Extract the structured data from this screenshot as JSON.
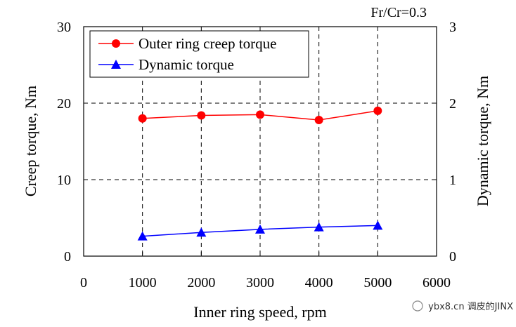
{
  "chart_data": {
    "type": "line",
    "annotation": "Fr/Cr=0.3",
    "xlabel": "Inner ring speed, rpm",
    "ylabel_left": "Creep torque, Nm",
    "ylabel_right": "Dynamic torque, Nm",
    "xlim": [
      0,
      6000
    ],
    "ylim_left": [
      0,
      30
    ],
    "ylim_right": [
      0,
      3
    ],
    "x_ticks": [
      0,
      1000,
      2000,
      3000,
      4000,
      5000,
      6000
    ],
    "x_tick_labels": [
      "0",
      "1000",
      "2000",
      "3000",
      "4000",
      "5000",
      "6000"
    ],
    "y_left_ticks": [
      0,
      10,
      20,
      30
    ],
    "y_left_tick_labels": [
      "0",
      "10",
      "20",
      "30"
    ],
    "y_right_ticks": [
      0,
      1,
      2,
      3
    ],
    "y_right_tick_labels": [
      "0",
      "1",
      "2",
      "3"
    ],
    "grid": true,
    "legend_position": "top-left",
    "series": [
      {
        "name": "Outer ring creep torque",
        "axis": "left",
        "marker": "circle",
        "color": "#ff0000",
        "x": [
          1000,
          2000,
          3000,
          4000,
          5000
        ],
        "values": [
          18.0,
          18.4,
          18.5,
          17.8,
          19.0
        ]
      },
      {
        "name": "Dynamic torque",
        "axis": "right",
        "marker": "triangle",
        "color": "#0000ff",
        "x": [
          1000,
          2000,
          3000,
          4000,
          5000
        ],
        "values": [
          0.26,
          0.31,
          0.35,
          0.38,
          0.4
        ]
      }
    ]
  },
  "watermark": {
    "text": "ybx8.cn 调皮的JINX"
  }
}
